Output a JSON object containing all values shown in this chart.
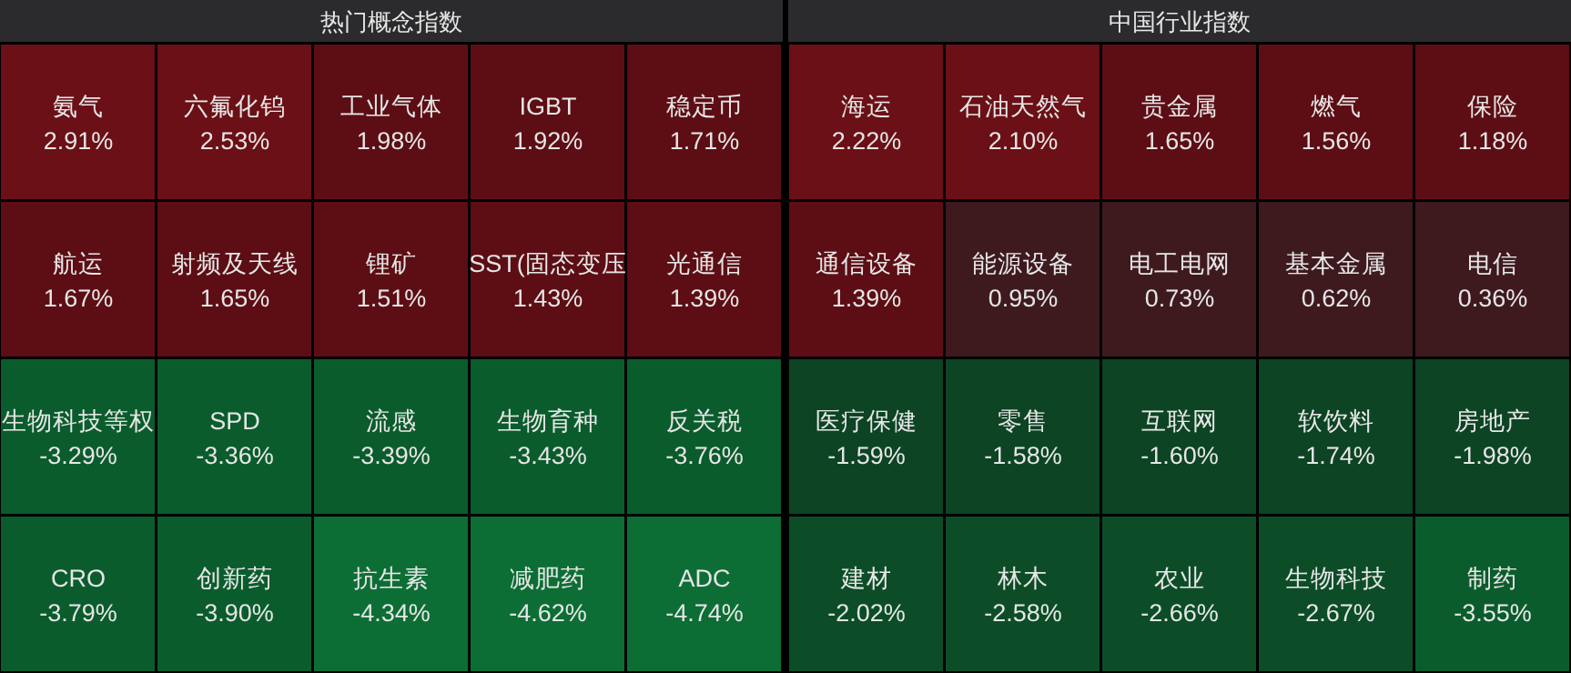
{
  "chart_data": [
    {
      "type": "other",
      "title": "热门概念指数",
      "categories": [
        "氨气",
        "六氟化钨",
        "工业气体",
        "IGBT",
        "稳定币",
        "航运",
        "射频及天线",
        "锂矿",
        "SST(固态变压",
        "光通信",
        "生物科技等权",
        "SPD",
        "流感",
        "生物育种",
        "反关税",
        "CRO",
        "创新药",
        "抗生素",
        "减肥药",
        "ADC"
      ],
      "values": [
        2.91,
        2.53,
        1.98,
        1.92,
        1.71,
        1.67,
        1.65,
        1.51,
        1.43,
        1.39,
        -3.29,
        -3.36,
        -3.39,
        -3.43,
        -3.76,
        -3.79,
        -3.9,
        -4.34,
        -4.62,
        -4.74
      ],
      "value_labels": [
        "2.91%",
        "2.53%",
        "1.98%",
        "1.92%",
        "1.71%",
        "1.67%",
        "1.65%",
        "1.51%",
        "1.43%",
        "1.39%",
        "-3.29%",
        "-3.36%",
        "-3.39%",
        "-3.43%",
        "-3.76%",
        "-3.79%",
        "-3.90%",
        "-4.34%",
        "-4.62%",
        "-4.74%"
      ]
    },
    {
      "type": "other",
      "title": "中国行业指数",
      "categories": [
        "海运",
        "石油天然气",
        "贵金属",
        "燃气",
        "保险",
        "通信设备",
        "能源设备",
        "电工电网",
        "基本金属",
        "电信",
        "医疗保健",
        "零售",
        "互联网",
        "软饮料",
        "房地产",
        "建材",
        "林木",
        "农业",
        "生物科技",
        "制药"
      ],
      "values": [
        2.22,
        2.1,
        1.65,
        1.56,
        1.18,
        1.39,
        0.95,
        0.73,
        0.62,
        0.36,
        -1.59,
        -1.58,
        -1.6,
        -1.74,
        -1.98,
        -2.02,
        -2.58,
        -2.66,
        -2.67,
        -3.55
      ],
      "value_labels": [
        "2.22%",
        "2.10%",
        "1.65%",
        "1.56%",
        "1.18%",
        "1.39%",
        "0.95%",
        "0.73%",
        "0.62%",
        "0.36%",
        "-1.59%",
        "-1.58%",
        "-1.60%",
        "-1.74%",
        "-1.98%",
        "-2.02%",
        "-2.58%",
        "-2.66%",
        "-2.67%",
        "-3.55%"
      ]
    }
  ]
}
